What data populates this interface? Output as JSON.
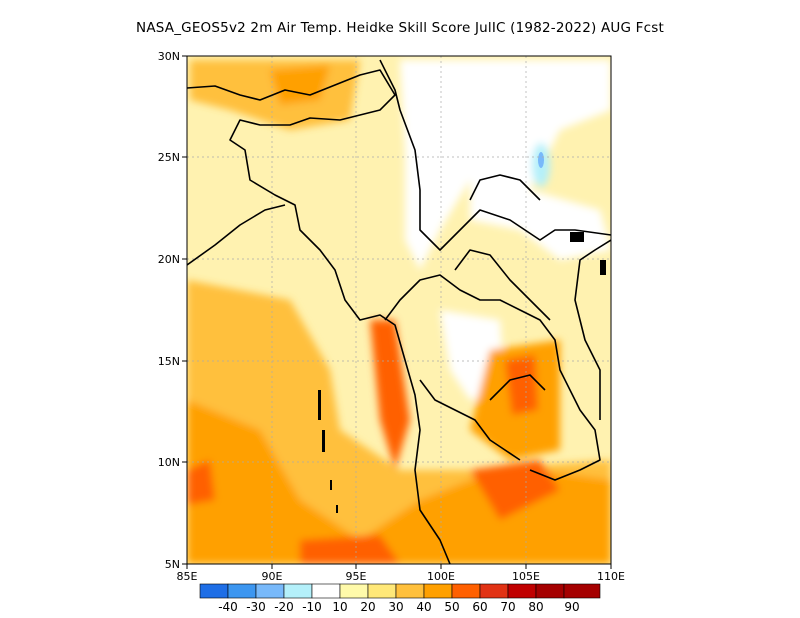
{
  "title": "NASA_GEOS5v2  2m Air Temp. Heidke Skill Score JulIC (1982-2022) AUG Fcst",
  "map": {
    "lon_ticks": [
      "85E",
      "90E",
      "95E",
      "100E",
      "105E",
      "110E"
    ],
    "lat_ticks": [
      "5N",
      "10N",
      "15N",
      "20N",
      "25N",
      "30N"
    ],
    "lon_range": [
      85,
      110
    ],
    "lat_range": [
      5,
      30
    ],
    "grid": true
  },
  "colorbar": {
    "labels": [
      "-40",
      "-30",
      "-20",
      "-10",
      "10",
      "20",
      "30",
      "40",
      "50",
      "60",
      "70",
      "80",
      "90"
    ],
    "colors": [
      "#1e6ee6",
      "#3c96f0",
      "#78b9fa",
      "#b4f0fa",
      "#ffffff",
      "#fffaaa",
      "#ffe878",
      "#ffc03c",
      "#ffa000",
      "#ff6000",
      "#e13214",
      "#c00000",
      "#a50000"
    ]
  },
  "colors": {
    "ocean_base": "#fff2b0",
    "coast": "#000000",
    "grid": "#aaaaaa"
  }
}
